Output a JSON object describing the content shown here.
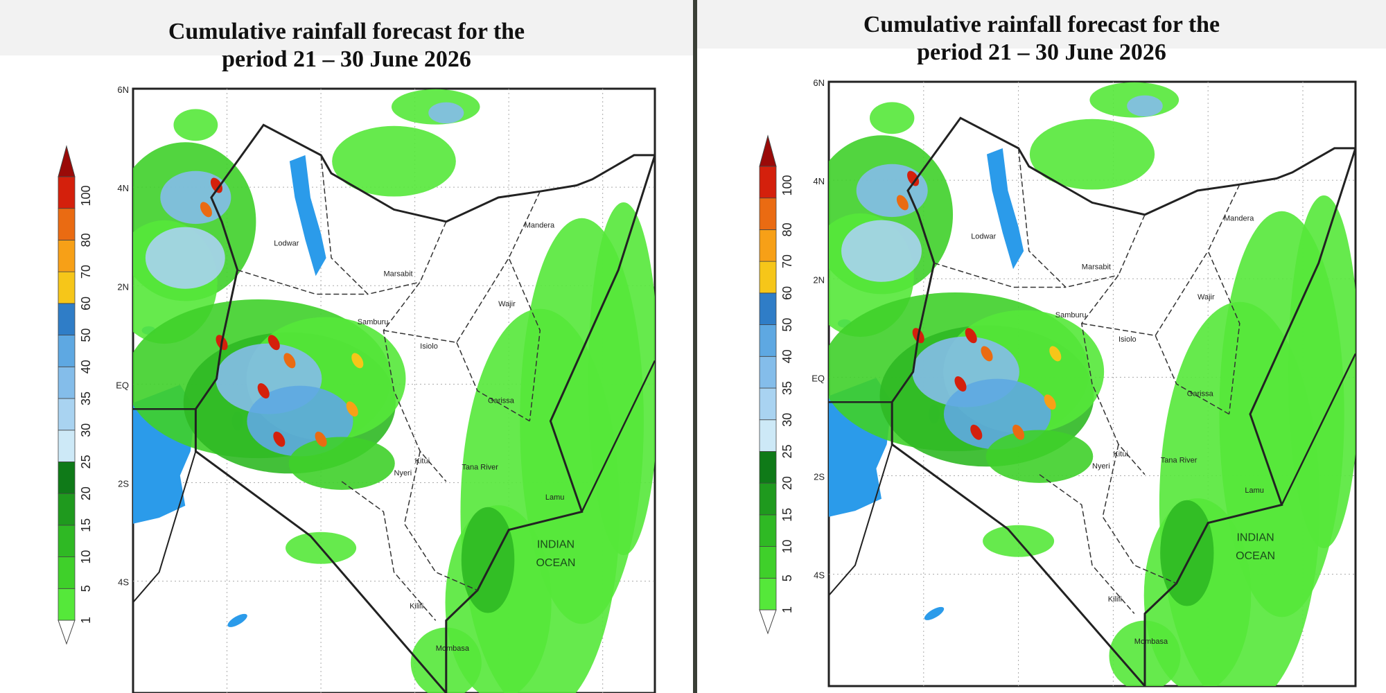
{
  "panels": [
    {
      "title_line1": "Cumulative rainfall forecast for the",
      "title_line2": "period 21 – 30 June 2026"
    },
    {
      "title_line1": "Cumulative rainfall forecast for the",
      "title_line2": "period 21 – 30 June 2026"
    }
  ],
  "map": {
    "lat_ticks": [
      "6N",
      "4N",
      "2N",
      "EQ",
      "2S",
      "4S"
    ],
    "places": [
      {
        "name": "Lodwar"
      },
      {
        "name": "Marsabit"
      },
      {
        "name": "Mandera"
      },
      {
        "name": "Wajir"
      },
      {
        "name": "Isiolo"
      },
      {
        "name": "Garissa"
      },
      {
        "name": "Nyeri"
      },
      {
        "name": "Kitui"
      },
      {
        "name": "Tana River"
      },
      {
        "name": "Lamu"
      },
      {
        "name": "Kilifi"
      },
      {
        "name": "Mombasa"
      },
      {
        "name": "Samburu"
      }
    ],
    "ocean_label": [
      "INDIAN",
      "OCEAN"
    ]
  },
  "colorbar": {
    "labels": [
      "1",
      "5",
      "10",
      "15",
      "20",
      "25",
      "30",
      "35",
      "40",
      "50",
      "60",
      "70",
      "80",
      "100"
    ],
    "colors": [
      "#ffffff",
      "#55e83a",
      "#3fd02a",
      "#2fb924",
      "#1f9a1e",
      "#0f7a18",
      "#cde9f7",
      "#a9d3f1",
      "#84bdea",
      "#5ea8e2",
      "#2f7dc7",
      "#f6c619",
      "#f7a017",
      "#ea6b12",
      "#d4200c",
      "#9a0a08"
    ]
  }
}
